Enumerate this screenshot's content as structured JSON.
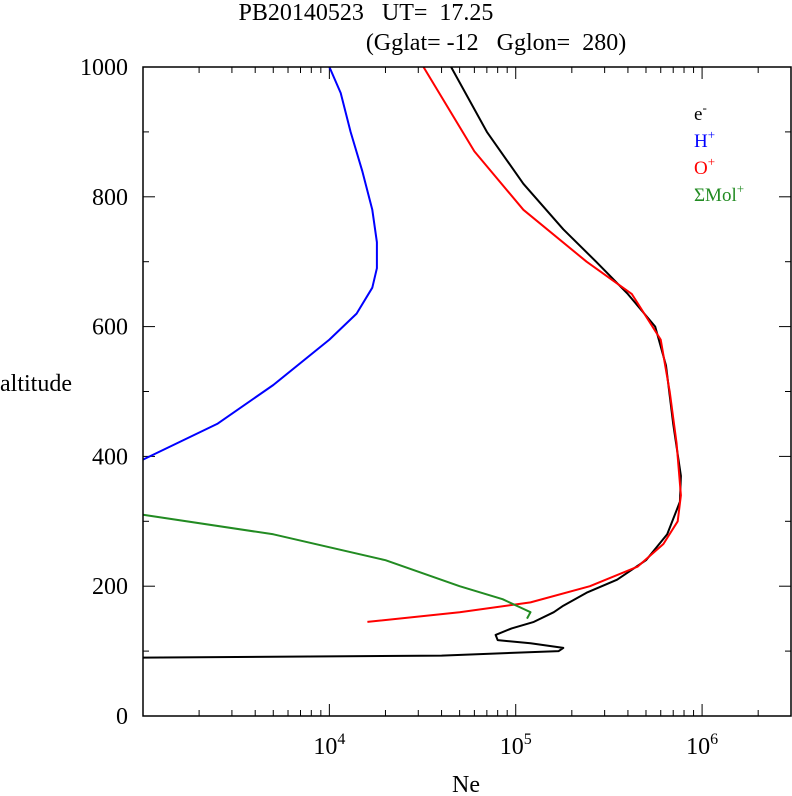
{
  "title_line1": "PB20140523   UT=  17.25",
  "title_line2": "(Gglat= -12   Gglon=  280)",
  "chart_data": {
    "type": "line",
    "xlabel": "Ne",
    "ylabel": "altitude",
    "xscale": "log",
    "xlim": [
      1000,
      3000000
    ],
    "ylim": [
      0,
      1000
    ],
    "y_ticks": [
      "0",
      "200",
      "400",
      "600",
      "800",
      "1000"
    ],
    "x_ticks": [
      {
        "base": "10",
        "exp": "4",
        "value": 10000
      },
      {
        "base": "10",
        "exp": "5",
        "value": 100000
      },
      {
        "base": "10",
        "exp": "6",
        "value": 1000000
      }
    ],
    "legend_position": "top-right",
    "series": [
      {
        "name": "e",
        "sup": "-",
        "color": "#000000",
        "points": [
          [
            1000,
            90
          ],
          [
            40000,
            93
          ],
          [
            170000,
            100
          ],
          [
            180000,
            105
          ],
          [
            120000,
            112
          ],
          [
            80000,
            117
          ],
          [
            78000,
            125
          ],
          [
            95000,
            135
          ],
          [
            125000,
            145
          ],
          [
            160000,
            160
          ],
          [
            180000,
            170
          ],
          [
            240000,
            190
          ],
          [
            350000,
            210
          ],
          [
            500000,
            240
          ],
          [
            650000,
            280
          ],
          [
            760000,
            330
          ],
          [
            770000,
            370
          ],
          [
            700000,
            450
          ],
          [
            640000,
            540
          ],
          [
            560000,
            600
          ],
          [
            400000,
            650
          ],
          [
            270000,
            700
          ],
          [
            180000,
            750
          ],
          [
            110000,
            820
          ],
          [
            70000,
            900
          ],
          [
            45000,
            1000
          ]
        ]
      },
      {
        "name": "H",
        "sup": "+",
        "color": "#0000ff",
        "points": [
          [
            1000,
            395
          ],
          [
            2500,
            450
          ],
          [
            5000,
            510
          ],
          [
            10000,
            580
          ],
          [
            14000,
            620
          ],
          [
            17000,
            660
          ],
          [
            18000,
            690
          ],
          [
            18000,
            730
          ],
          [
            17000,
            780
          ],
          [
            15000,
            840
          ],
          [
            13000,
            900
          ],
          [
            11500,
            960
          ],
          [
            10000,
            1000
          ]
        ]
      },
      {
        "name": "O",
        "sup": "+",
        "color": "#ff0000",
        "points": [
          [
            16000,
            145
          ],
          [
            50000,
            160
          ],
          [
            120000,
            175
          ],
          [
            250000,
            200
          ],
          [
            450000,
            230
          ],
          [
            620000,
            265
          ],
          [
            740000,
            300
          ],
          [
            770000,
            340
          ],
          [
            730000,
            420
          ],
          [
            670000,
            500
          ],
          [
            600000,
            580
          ],
          [
            420000,
            650
          ],
          [
            240000,
            700
          ],
          [
            110000,
            780
          ],
          [
            60000,
            870
          ],
          [
            32000,
            1000
          ]
        ]
      },
      {
        "name": "ΣMol",
        "sup": "+",
        "color": "#228b22",
        "points": [
          [
            1000,
            310
          ],
          [
            5000,
            280
          ],
          [
            20000,
            240
          ],
          [
            50000,
            200
          ],
          [
            85000,
            180
          ],
          [
            110000,
            165
          ],
          [
            120000,
            160
          ],
          [
            115000,
            150
          ]
        ]
      }
    ]
  }
}
